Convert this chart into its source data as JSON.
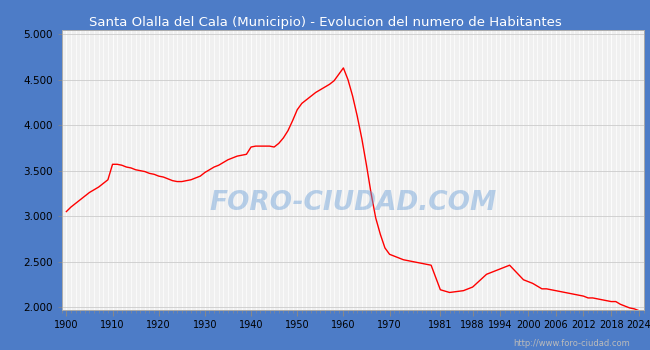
{
  "title": "Santa Olalla del Cala (Municipio) - Evolucion del numero de Habitantes",
  "title_color": "white",
  "title_bg_color": "#4d7cc7",
  "border_color": "#4d7cc7",
  "plot_bg_color": "#f0f0f0",
  "line_color": "red",
  "watermark": "FORO-CIUDAD.COM",
  "url": "http://www.foro-ciudad.com",
  "years": [
    1900,
    1901,
    1902,
    1903,
    1904,
    1905,
    1906,
    1907,
    1908,
    1909,
    1910,
    1911,
    1912,
    1913,
    1914,
    1915,
    1916,
    1917,
    1918,
    1919,
    1920,
    1921,
    1922,
    1923,
    1924,
    1925,
    1926,
    1927,
    1928,
    1929,
    1930,
    1931,
    1932,
    1933,
    1934,
    1935,
    1936,
    1937,
    1938,
    1939,
    1940,
    1941,
    1942,
    1943,
    1944,
    1945,
    1946,
    1947,
    1948,
    1949,
    1950,
    1951,
    1952,
    1953,
    1954,
    1955,
    1956,
    1957,
    1958,
    1959,
    1960,
    1961,
    1962,
    1963,
    1964,
    1965,
    1966,
    1967,
    1968,
    1969,
    1970,
    1971,
    1972,
    1973,
    1974,
    1975,
    1976,
    1977,
    1978,
    1979,
    1981,
    1983,
    1986,
    1988,
    1991,
    1994,
    1996,
    1999,
    2000,
    2001,
    2002,
    2003,
    2004,
    2005,
    2006,
    2007,
    2008,
    2009,
    2010,
    2011,
    2012,
    2013,
    2014,
    2015,
    2016,
    2017,
    2018,
    2019,
    2020,
    2021,
    2022,
    2023,
    2024
  ],
  "population": [
    3050,
    3100,
    3140,
    3180,
    3220,
    3260,
    3290,
    3320,
    3360,
    3400,
    3570,
    3570,
    3560,
    3540,
    3530,
    3510,
    3500,
    3490,
    3470,
    3460,
    3440,
    3430,
    3410,
    3390,
    3380,
    3380,
    3390,
    3400,
    3420,
    3440,
    3480,
    3510,
    3540,
    3560,
    3590,
    3620,
    3640,
    3660,
    3670,
    3680,
    3760,
    3770,
    3770,
    3770,
    3770,
    3760,
    3800,
    3860,
    3940,
    4050,
    4170,
    4240,
    4280,
    4320,
    4360,
    4390,
    4420,
    4450,
    4490,
    4560,
    4630,
    4500,
    4320,
    4100,
    3850,
    3560,
    3250,
    2980,
    2800,
    2650,
    2580,
    2560,
    2540,
    2520,
    2510,
    2500,
    2490,
    2480,
    2470,
    2460,
    2190,
    2160,
    2180,
    2220,
    2360,
    2420,
    2460,
    2300,
    2280,
    2260,
    2230,
    2200,
    2200,
    2190,
    2180,
    2170,
    2160,
    2150,
    2140,
    2130,
    2120,
    2100,
    2100,
    2090,
    2080,
    2070,
    2060,
    2060,
    2030,
    2010,
    1990,
    1980,
    1960
  ],
  "xtick_labels": [
    "1900",
    "1910",
    "1920",
    "1930",
    "1940",
    "1950",
    "1960",
    "1970",
    "1981",
    "1988",
    "1994",
    "2000",
    "2006",
    "2012",
    "2018",
    "2024"
  ],
  "xtick_positions": [
    1900,
    1910,
    1920,
    1930,
    1940,
    1950,
    1960,
    1970,
    1981,
    1988,
    1994,
    2000,
    2006,
    2012,
    2018,
    2024
  ],
  "ytick_labels": [
    "2.000",
    "2.500",
    "3.000",
    "3.500",
    "4.000",
    "4.500",
    "5.000"
  ],
  "ytick_values": [
    2000,
    2500,
    3000,
    3500,
    4000,
    4500,
    5000
  ],
  "ylim": [
    1970,
    5050
  ],
  "xlim": [
    1899,
    2025
  ]
}
